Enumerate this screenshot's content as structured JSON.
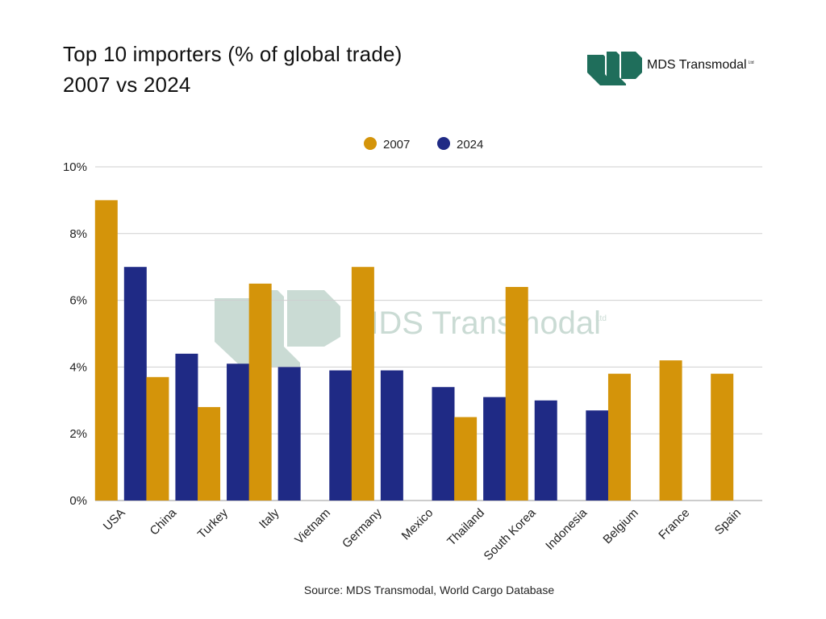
{
  "page": {
    "title_line1": "Top 10 importers (% of global trade)",
    "title_line2": "2007 vs 2024",
    "source": "Source: MDS Transmodal, World Cargo Database"
  },
  "logo": {
    "text": "MDS Transmodal",
    "suffix": "Ltd",
    "color": "#1f6e5b",
    "watermark_text": "MDS Transmodal",
    "watermark_suffix": "Ltd"
  },
  "colors": {
    "series_2007": "#d4940a",
    "series_2024": "#1f2a85",
    "grid": "#cfcfcf",
    "axis_text": "#222222",
    "watermark": "#b9d0c6"
  },
  "chart_data": {
    "type": "bar",
    "title": "Top 10 importers (% of global trade) 2007 vs 2024",
    "xlabel": "",
    "ylabel": "",
    "ylim": [
      0,
      10
    ],
    "y_ticks": [
      0,
      2,
      4,
      6,
      8,
      10
    ],
    "y_tick_labels": [
      "0%",
      "2%",
      "4%",
      "6%",
      "8%",
      "10%"
    ],
    "grid": true,
    "legend_position": "top-center",
    "categories": [
      "USA",
      "China",
      "Turkey",
      "Italy",
      "Vietnam",
      "Germany",
      "Mexico",
      "Thailand",
      "South Korea",
      "Indonesia",
      "Belgium",
      "France",
      "Spain"
    ],
    "series": [
      {
        "name": "2007",
        "values": [
          9.0,
          3.7,
          2.8,
          6.5,
          null,
          7.0,
          null,
          2.5,
          6.4,
          null,
          3.8,
          4.2,
          3.8
        ]
      },
      {
        "name": "2024",
        "values": [
          7.0,
          4.4,
          4.1,
          4.0,
          3.9,
          3.9,
          3.4,
          3.1,
          3.0,
          2.7,
          null,
          null,
          null
        ]
      }
    ]
  }
}
